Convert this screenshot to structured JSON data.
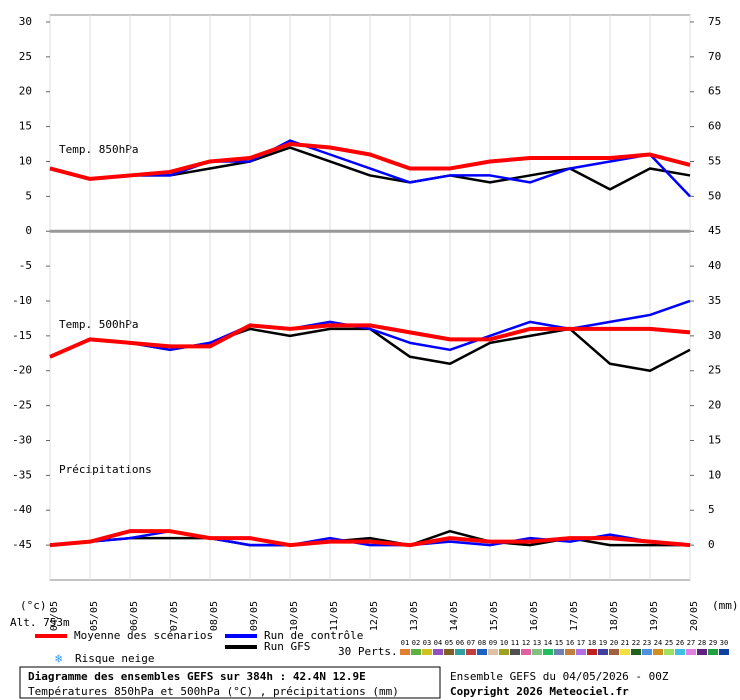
{
  "chart_data": {
    "type": "line",
    "title": "Diagramme des ensembles GEFS sur 384h : 42.4N 12.9E",
    "subtitle": "Températures 850hPa et 500hPa (°C) , précipitations (mm)",
    "run_info": "Ensemble GEFS du 04/05/2026 - 00Z",
    "copyright": "Copyright 2026 Meteociel.fr",
    "altitude": "Alt. 753m",
    "y_unit": "(°c)",
    "y2_unit": "(mm)",
    "panel_labels": [
      "Temp. 850hPa",
      "Temp. 500hPa",
      "Précipitations"
    ],
    "snow_legend": "Risque neige",
    "perturbations_label": "30 Perts.",
    "perturbations": [
      {
        "label": "01",
        "color": "#e08030"
      },
      {
        "label": "02",
        "color": "#60b040"
      },
      {
        "label": "03",
        "color": "#d0c020"
      },
      {
        "label": "04",
        "color": "#9050c0"
      },
      {
        "label": "05",
        "color": "#806020"
      },
      {
        "label": "06",
        "color": "#30a0a0"
      },
      {
        "label": "07",
        "color": "#c04040"
      },
      {
        "label": "08",
        "color": "#2060c0"
      },
      {
        "label": "09",
        "color": "#e0c0a0"
      },
      {
        "label": "10",
        "color": "#a0a020"
      },
      {
        "label": "11",
        "color": "#505050"
      },
      {
        "label": "12",
        "color": "#e060a0"
      },
      {
        "label": "13",
        "color": "#80c080"
      },
      {
        "label": "14",
        "color": "#20c060"
      },
      {
        "label": "15",
        "color": "#7080b0"
      },
      {
        "label": "16",
        "color": "#c08040"
      },
      {
        "label": "17",
        "color": "#b070e0"
      },
      {
        "label": "18",
        "color": "#c02020"
      },
      {
        "label": "19",
        "color": "#4040a0"
      },
      {
        "label": "20",
        "color": "#a06040"
      },
      {
        "label": "21",
        "color": "#f0e040"
      },
      {
        "label": "22",
        "color": "#206020"
      },
      {
        "label": "23",
        "color": "#5090e0"
      },
      {
        "label": "24",
        "color": "#d09020"
      },
      {
        "label": "25",
        "color": "#a0e060"
      },
      {
        "label": "26",
        "color": "#40c0e0"
      },
      {
        "label": "27",
        "color": "#e080e0"
      },
      {
        "label": "28",
        "color": "#602080"
      },
      {
        "label": "29",
        "color": "#20a040"
      },
      {
        "label": "30",
        "color": "#1040a0"
      }
    ],
    "categories": [
      "04/05",
      "05/05",
      "06/05",
      "07/05",
      "08/05",
      "09/05",
      "10/05",
      "11/05",
      "12/05",
      "13/05",
      "14/05",
      "15/05",
      "16/05",
      "17/05",
      "18/05",
      "19/05",
      "20/05"
    ],
    "ylim": [
      -50,
      31
    ],
    "yticks": [
      30,
      25,
      20,
      15,
      10,
      5,
      0,
      -5,
      -10,
      -15,
      -20,
      -25,
      -30,
      -35,
      -40,
      -45
    ],
    "y2lim": [
      -5,
      76
    ],
    "y2ticks": [
      75,
      70,
      65,
      60,
      55,
      50,
      45,
      40,
      35,
      30,
      25,
      20,
      15,
      10,
      5,
      0
    ],
    "series": [
      {
        "name": "Run GFS",
        "color": "#000000",
        "width": 2.5,
        "values": [
          9,
          7.5,
          8,
          8,
          9,
          10,
          12,
          10,
          8,
          7,
          8,
          7,
          8,
          9,
          6,
          9,
          8
        ],
        "values_500": [
          -18,
          -15.5,
          -16,
          -17,
          -16,
          -14,
          -15,
          -14,
          -14,
          -18,
          -19,
          -16,
          -15,
          -14,
          -19,
          -20,
          -17
        ],
        "values_precip": [
          0,
          0.5,
          1,
          1,
          1,
          0,
          0,
          0.5,
          1,
          0,
          2,
          0.5,
          0,
          1,
          0,
          0,
          0
        ]
      },
      {
        "name": "Run de contrôle",
        "color": "#0000ff",
        "width": 2.5,
        "values": [
          9,
          7.5,
          8,
          8,
          10,
          10,
          13,
          11,
          9,
          7,
          8,
          8,
          7,
          9,
          10,
          11,
          5
        ],
        "values_500": [
          -18,
          -15.5,
          -16,
          -17,
          -16,
          -13.5,
          -14,
          -13,
          -14,
          -16,
          -17,
          -15,
          -13,
          -14,
          -13,
          -12,
          -10
        ],
        "values_precip": [
          0,
          0.5,
          1,
          2,
          1,
          0,
          0,
          1,
          0,
          0,
          0.5,
          0,
          1,
          0.5,
          1.5,
          0.5,
          0
        ]
      },
      {
        "name": "Moyenne des scénarios",
        "color": "#ff0000",
        "width": 4,
        "values": [
          9,
          7.5,
          8,
          8.5,
          10,
          10.5,
          12.5,
          12,
          11,
          9,
          9,
          10,
          10.5,
          10.5,
          10.5,
          11,
          9.5
        ],
        "values_500": [
          -18,
          -15.5,
          -16,
          -16.5,
          -16.5,
          -13.5,
          -14,
          -13.5,
          -13.5,
          -14.5,
          -15.5,
          -15.5,
          -14,
          -14,
          -14,
          -14,
          -14.5
        ],
        "values_precip": [
          0,
          0.5,
          2,
          2,
          1,
          1,
          0,
          0.5,
          0.5,
          0,
          1,
          0.5,
          0.5,
          1,
          1,
          0.5,
          0
        ]
      }
    ]
  }
}
